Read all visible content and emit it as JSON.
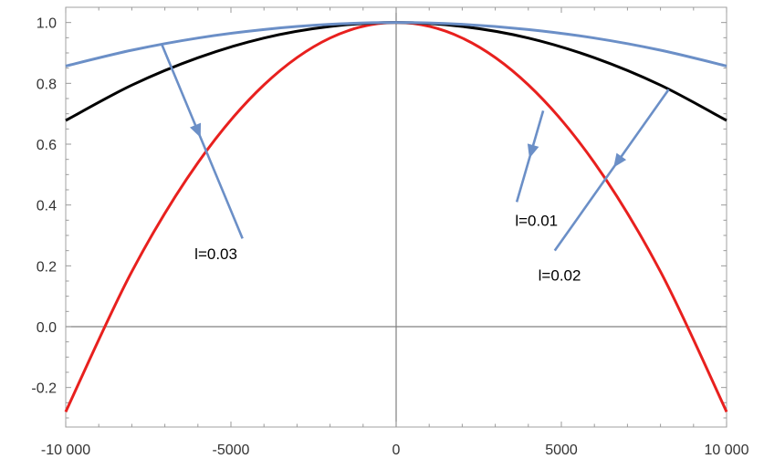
{
  "chart_data": {
    "type": "line",
    "title": "",
    "xlabel": "",
    "ylabel": "",
    "xlim": [
      -10000,
      10000
    ],
    "ylim": [
      -0.33,
      1.05
    ],
    "grid": false,
    "x_ticks": [
      -10000,
      -5000,
      0,
      5000,
      10000
    ],
    "x_tick_labels": [
      "-10 000",
      "-5000",
      "0",
      "5000",
      "10 000"
    ],
    "y_ticks": [
      -0.2,
      0.0,
      0.2,
      0.4,
      0.6,
      0.8,
      1.0
    ],
    "y_tick_labels": [
      "-0.2",
      "0.0",
      "0.2",
      "0.4",
      "0.6",
      "0.8",
      "1.0"
    ],
    "series": [
      {
        "color": "#6b8fc7",
        "x": [
          -10000,
          -8000,
          -6000,
          -4000,
          -2000,
          0,
          2000,
          4000,
          6000,
          8000,
          10000
        ],
        "y": [
          0.857,
          0.909,
          0.949,
          0.977,
          0.994,
          1.0,
          0.994,
          0.977,
          0.949,
          0.909,
          0.857
        ]
      },
      {
        "color": "#000000",
        "x": [
          -10000,
          -8000,
          -6000,
          -4000,
          -2000,
          0,
          2000,
          4000,
          6000,
          8000,
          10000
        ],
        "y": [
          0.678,
          0.794,
          0.884,
          0.949,
          0.987,
          1.0,
          0.987,
          0.949,
          0.884,
          0.794,
          0.678
        ]
      },
      {
        "color": "#e8201e",
        "x": [
          -10000,
          -8000,
          -6000,
          -4000,
          -2000,
          0,
          2000,
          4000,
          6000,
          8000,
          10000
        ],
        "y": [
          -0.28,
          0.181,
          0.539,
          0.795,
          0.949,
          1.0,
          0.949,
          0.795,
          0.539,
          0.181,
          -0.28
        ]
      }
    ],
    "annotations": [
      {
        "text": "l=0.03",
        "x": -6100,
        "y": 0.24,
        "arrow_from": [
          -4650,
          0.29
        ],
        "arrow_to": [
          -7100,
          0.93
        ]
      },
      {
        "text": "l=0.01",
        "x": 3600,
        "y": 0.35,
        "arrow_from": [
          3650,
          0.41
        ],
        "arrow_to": [
          4450,
          0.71
        ]
      },
      {
        "text": "l=0.02",
        "x": 4300,
        "y": 0.17,
        "arrow_from": [
          4800,
          0.25
        ],
        "arrow_to": [
          8250,
          0.78
        ]
      }
    ],
    "annotation_color": "#6b8fc7"
  }
}
